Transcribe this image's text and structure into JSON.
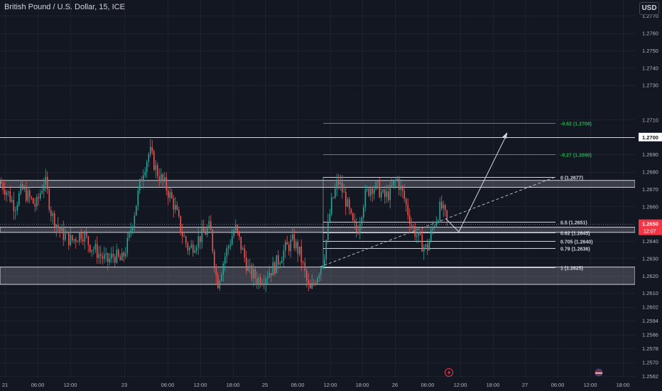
{
  "symbol": {
    "title": "British Pound / U.S. Dollar, 15, ICE"
  },
  "currency_button": {
    "label": "USD"
  },
  "colors": {
    "background": "#131722",
    "grid": "#1e222d",
    "bull": "#26a69a",
    "bear": "#ef5350",
    "axis_text": "#b2b5be",
    "fib_extension": "#22ab4a",
    "fib_level": "#d1d4dc",
    "price_label_bg": "#f23645"
  },
  "price_axis": {
    "ticks": [
      "1.2770",
      "1.2760",
      "1.2750",
      "1.2740",
      "1.2730",
      "1.2710",
      "1.2690",
      "1.2680",
      "1.2670",
      "1.2660",
      "1.2640",
      "1.2630",
      "1.2620",
      "1.2610",
      "1.2602",
      "1.2594",
      "1.2586",
      "1.2578",
      "1.2570",
      "1.2562"
    ],
    "marked_level_label": "1.2700",
    "current_price_label": "1.2650",
    "countdown_label": "12:07"
  },
  "time_axis": {
    "ticks": [
      "21",
      "06:00",
      "12:00",
      "23",
      "06:00",
      "12:00",
      "18:00",
      "25",
      "06:00",
      "12:00",
      "18:00",
      "26",
      "06:00",
      "12:00",
      "18:00",
      "27",
      "06:00",
      "12:00",
      "18:00"
    ]
  },
  "fib_levels": [
    {
      "label": "-0.62 (1.2708)",
      "price": 1.2708,
      "type": "extension"
    },
    {
      "label": "-0.27 (1.2690)",
      "price": 1.269,
      "type": "extension"
    },
    {
      "label": "0 (1.2677)",
      "price": 1.2677,
      "type": "level"
    },
    {
      "label": "0.5 (1.2651)",
      "price": 1.2651,
      "type": "level"
    },
    {
      "label": "0.62 (1.2645)",
      "price": 1.2645,
      "type": "level"
    },
    {
      "label": "0.705 (1.2640)",
      "price": 1.264,
      "type": "level"
    },
    {
      "label": "0.79 (1.2636)",
      "price": 1.2636,
      "type": "level"
    },
    {
      "label": "1 (1.2625)",
      "price": 1.2625,
      "type": "level"
    }
  ],
  "zones": [
    {
      "name": "resistance-zone",
      "from": 1.2671,
      "to": 1.2675
    },
    {
      "name": "mid-zone",
      "from": 1.2645,
      "to": 1.2648
    },
    {
      "name": "support-zone",
      "from": 1.2615,
      "to": 1.2625
    }
  ],
  "horizontal_line": {
    "price": 1.27
  },
  "chart_data": {
    "type": "candlestick",
    "ylim": [
      1.2558,
      1.2776
    ],
    "price_path": [
      [
        0,
        1.2674
      ],
      [
        10,
        1.2668
      ],
      [
        20,
        1.266
      ],
      [
        30,
        1.267
      ],
      [
        40,
        1.2665
      ],
      [
        50,
        1.266
      ],
      [
        62,
        1.2676
      ],
      [
        72,
        1.2655
      ],
      [
        85,
        1.2645
      ],
      [
        100,
        1.264
      ],
      [
        115,
        1.2645
      ],
      [
        125,
        1.2638
      ],
      [
        140,
        1.2632
      ],
      [
        150,
        1.2628
      ],
      [
        160,
        1.2632
      ],
      [
        170,
        1.2628
      ],
      [
        180,
        1.264
      ],
      [
        190,
        1.266
      ],
      [
        200,
        1.268
      ],
      [
        210,
        1.2692
      ],
      [
        220,
        1.268
      ],
      [
        232,
        1.2672
      ],
      [
        245,
        1.266
      ],
      [
        255,
        1.2645
      ],
      [
        265,
        1.2635
      ],
      [
        280,
        1.2642
      ],
      [
        295,
        1.2648
      ],
      [
        305,
        1.2615
      ],
      [
        315,
        1.263
      ],
      [
        330,
        1.2648
      ],
      [
        340,
        1.2635
      ],
      [
        350,
        1.2622
      ],
      [
        362,
        1.2618
      ],
      [
        372,
        1.262
      ],
      [
        385,
        1.2625
      ],
      [
        400,
        1.2635
      ],
      [
        412,
        1.264
      ],
      [
        422,
        1.2632
      ],
      [
        435,
        1.261
      ],
      [
        445,
        1.262
      ],
      [
        455,
        1.263
      ],
      [
        465,
        1.266
      ],
      [
        475,
        1.2675
      ],
      [
        485,
        1.2665
      ],
      [
        495,
        1.265
      ],
      [
        502,
        1.2645
      ],
      [
        512,
        1.2665
      ],
      [
        522,
        1.2672
      ],
      [
        532,
        1.267
      ],
      [
        540,
        1.2665
      ],
      [
        548,
        1.2668
      ],
      [
        558,
        1.2676
      ],
      [
        568,
        1.2665
      ],
      [
        578,
        1.265
      ],
      [
        590,
        1.264
      ],
      [
        600,
        1.2635
      ],
      [
        610,
        1.265
      ],
      [
        620,
        1.266
      ],
      [
        630,
        1.265
      ]
    ]
  }
}
